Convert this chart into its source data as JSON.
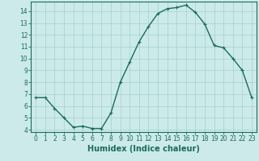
{
  "x": [
    0,
    1,
    2,
    3,
    4,
    5,
    6,
    7,
    8,
    9,
    10,
    11,
    12,
    13,
    14,
    15,
    16,
    17,
    18,
    19,
    20,
    21,
    22,
    23
  ],
  "y": [
    6.7,
    6.7,
    5.8,
    5.0,
    4.2,
    4.3,
    4.1,
    4.1,
    5.4,
    8.0,
    9.7,
    11.4,
    12.7,
    13.8,
    14.2,
    14.3,
    14.5,
    13.9,
    12.9,
    11.1,
    10.9,
    10.0,
    9.0,
    6.7
  ],
  "line_color": "#1a6b5a",
  "marker": "+",
  "marker_size": 3,
  "bg_color": "#cceaea",
  "grid_color": "#aad4d4",
  "xlabel": "Humidex (Indice chaleur)",
  "xlabel_fontsize": 7,
  "ylim_min": 3.8,
  "ylim_max": 14.8,
  "xlim_min": -0.5,
  "xlim_max": 23.5,
  "yticks": [
    4,
    5,
    6,
    7,
    8,
    9,
    10,
    11,
    12,
    13,
    14
  ],
  "xticks": [
    0,
    1,
    2,
    3,
    4,
    5,
    6,
    7,
    8,
    9,
    10,
    11,
    12,
    13,
    14,
    15,
    16,
    17,
    18,
    19,
    20,
    21,
    22,
    23
  ],
  "tick_fontsize": 5.5,
  "line_width": 1.0,
  "marker_edge_width": 0.8
}
